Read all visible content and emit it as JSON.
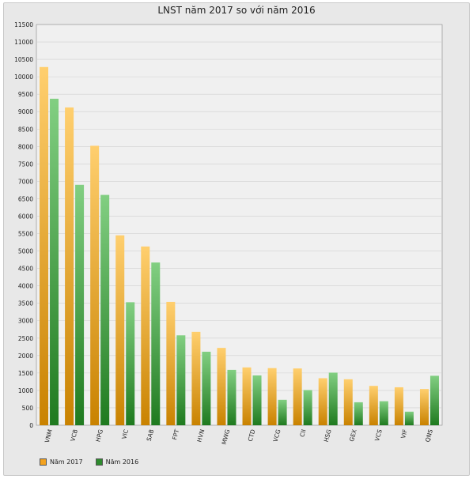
{
  "chart_data": {
    "type": "bar",
    "title": "LNST năm 2017 so với năm 2016",
    "xlabel": "",
    "ylabel": "",
    "ylim": [
      0,
      11500
    ],
    "yticks": [
      0,
      500,
      1000,
      1500,
      2000,
      2500,
      3000,
      3500,
      4000,
      4500,
      5000,
      5500,
      6000,
      6500,
      7000,
      7500,
      8000,
      8500,
      9000,
      9500,
      10000,
      10500,
      11000,
      11500
    ],
    "grid": true,
    "legend_position": "bottom-left",
    "categories": [
      "VNM",
      "VCB",
      "HPG",
      "VIC",
      "SAB",
      "FPT",
      "HVN",
      "MWG",
      "CTD",
      "VCG",
      "CII",
      "HSG",
      "GEX",
      "VCS",
      "VIF",
      "QNS"
    ],
    "series": [
      {
        "name": "Năm 2017",
        "color": "#f3a21f",
        "values": [
          10280,
          9120,
          8020,
          5450,
          5130,
          3540,
          2680,
          2220,
          1660,
          1640,
          1630,
          1350,
          1320,
          1130,
          1090,
          1040
        ]
      },
      {
        "name": "Năm 2016",
        "color": "#2e8b2e",
        "values": [
          9370,
          6900,
          6610,
          3530,
          4670,
          2580,
          2110,
          1590,
          1430,
          730,
          1010,
          1510,
          660,
          690,
          390,
          1420
        ]
      }
    ]
  }
}
